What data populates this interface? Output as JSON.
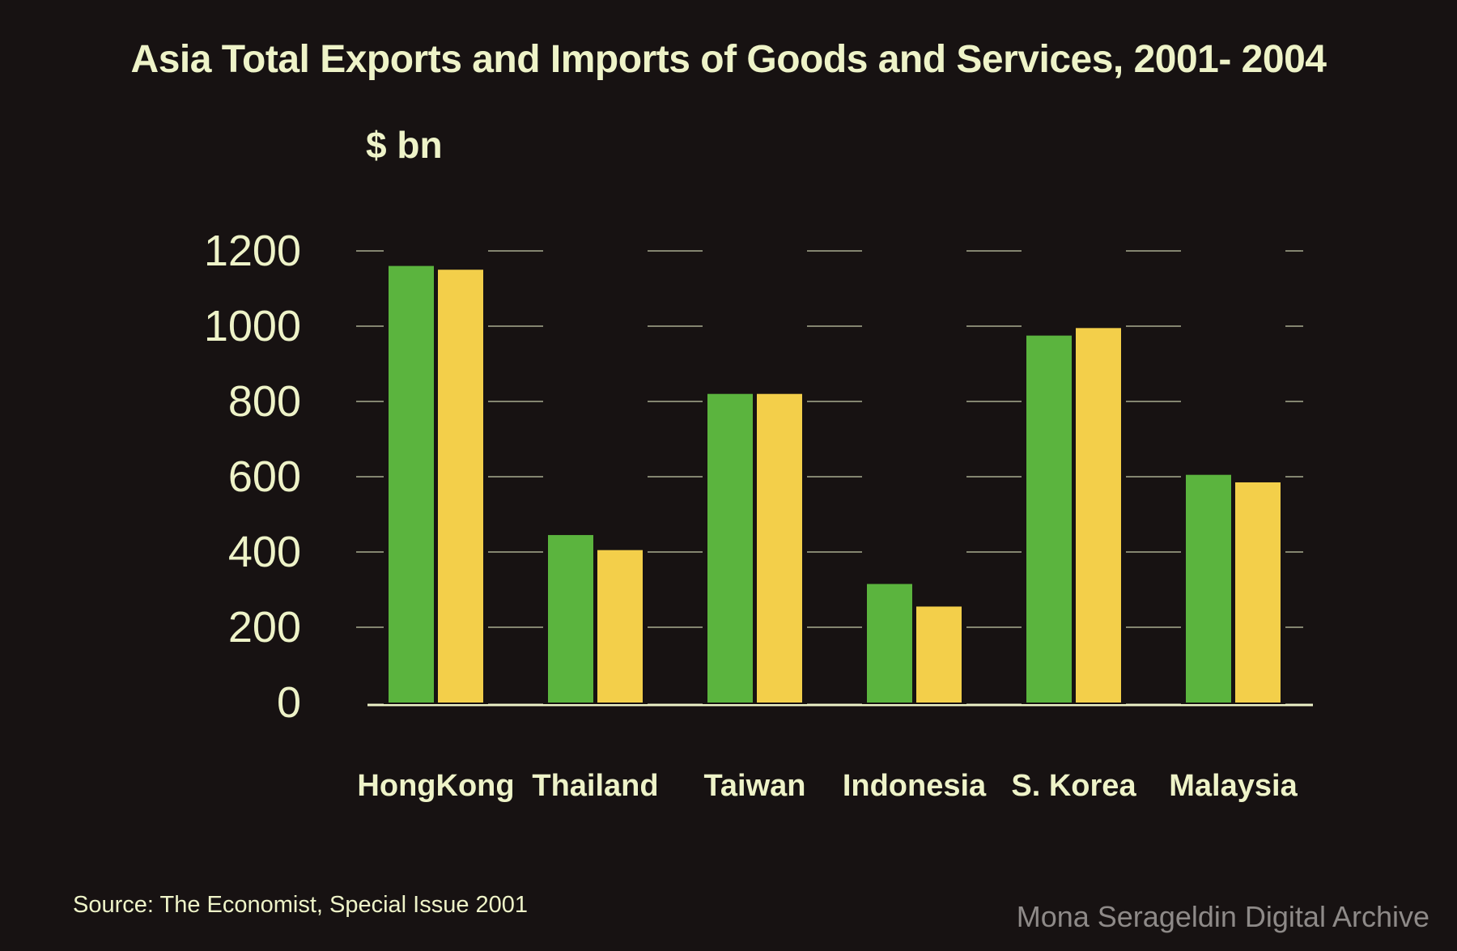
{
  "chart_data": {
    "type": "bar",
    "title": "Asia Total Exports and Imports of Goods and Services, 2001- 2004",
    "ylabel": "$ bn",
    "xlabel": "",
    "categories": [
      "HongKong",
      "Thailand",
      "Taiwan",
      "Indonesia",
      "S. Korea",
      "Malaysia"
    ],
    "series": [
      {
        "values": [
          1160,
          445,
          820,
          315,
          975,
          605
        ]
      },
      {
        "values": [
          1150,
          405,
          820,
          255,
          995,
          585
        ]
      }
    ],
    "ylim": [
      0,
      1200
    ],
    "yticks": [
      "0",
      "200",
      "400",
      "600",
      "800",
      "1000",
      "1200"
    ],
    "grid": true,
    "legend": "none",
    "source": "Source: The Economist, Special Issue 2001"
  },
  "colors": {
    "background": "#171212",
    "text": "#eef3c8",
    "series_1": "#5bb43e",
    "series_2": "#f3cf4a",
    "gridline": "#d9dfb9"
  },
  "watermark": "Mona Serageldin Digital Archive"
}
